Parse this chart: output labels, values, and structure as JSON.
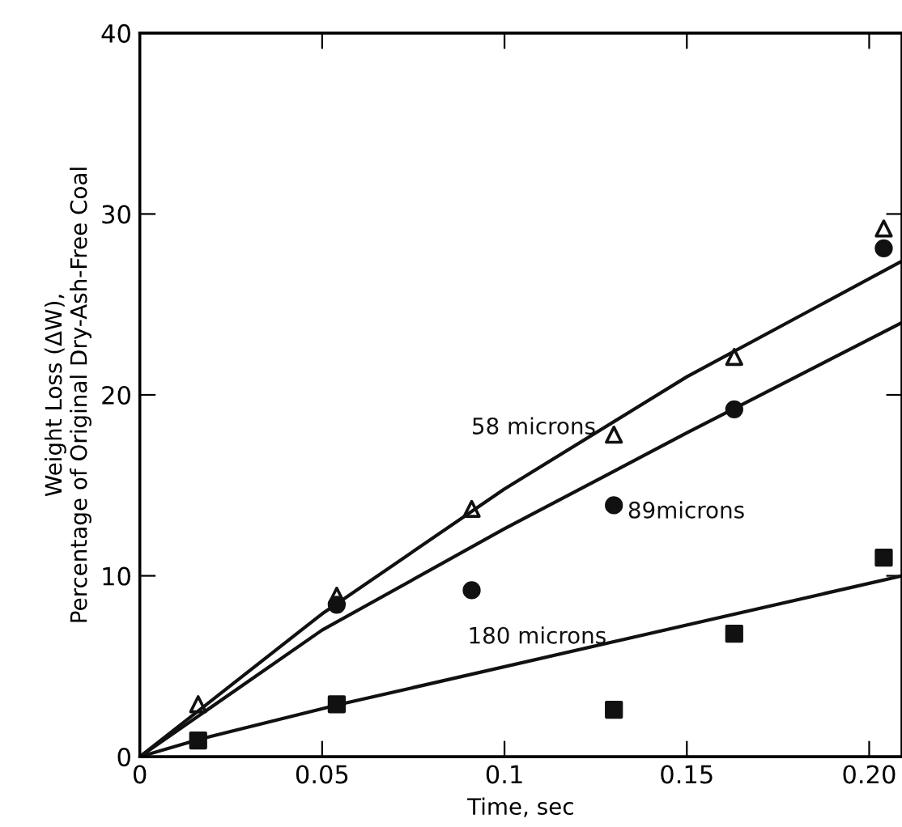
{
  "chart_data": {
    "type": "scatter",
    "xlabel": "Time, sec",
    "ylabel": "Weight Loss (ΔW),\nPercentage of Original Dry-Ash-Free Coal",
    "xlim": [
      0,
      0.209
    ],
    "ylim": [
      0,
      40
    ],
    "xticks": [
      0,
      0.05,
      {
        "value": 0.1,
        "label": "0.1"
      },
      0.15,
      {
        "value": 0.2,
        "label": "0.20"
      }
    ],
    "yticks": [
      0,
      10,
      20,
      30,
      40
    ],
    "grid": false,
    "legend": false,
    "series": [
      {
        "name": "58 microns",
        "marker": "triangle",
        "color": "#111111",
        "x": [
          0.016,
          0.054,
          0.091,
          0.13,
          0.163,
          0.204
        ],
        "values": [
          2.9,
          8.9,
          13.7,
          17.8,
          22.1,
          29.2
        ]
      },
      {
        "name": "89microns",
        "marker": "circle",
        "color": "#111111",
        "x": [
          0.054,
          0.091,
          0.13,
          0.163,
          0.204
        ],
        "values": [
          8.4,
          9.2,
          13.9,
          19.2,
          28.1
        ]
      },
      {
        "marker": "square",
        "color": "#111111",
        "x": [
          0.016,
          0.054,
          0.13,
          0.163,
          0.204
        ],
        "values": [
          0.9,
          2.9,
          2.6,
          6.8,
          11.0
        ]
      },
      {
        "type": "line",
        "color": "#111111",
        "line_style": "solid",
        "x": [
          0,
          0.05,
          0.1,
          0.15,
          0.209
        ],
        "values": [
          0,
          7.9,
          14.8,
          21.0,
          27.4
        ]
      },
      {
        "type": "line",
        "color": "#111111",
        "line_style": "solid",
        "x": [
          0,
          0.05,
          0.1,
          0.15,
          0.209
        ],
        "values": [
          0,
          7.0,
          12.6,
          17.9,
          24.0
        ]
      },
      {
        "name": "180 microns",
        "type": "line",
        "color": "#111111",
        "line_style": "solid",
        "x": [
          0,
          0.017,
          0.055,
          0.209
        ],
        "values": [
          0,
          1.0,
          2.9,
          10.0
        ]
      }
    ]
  }
}
